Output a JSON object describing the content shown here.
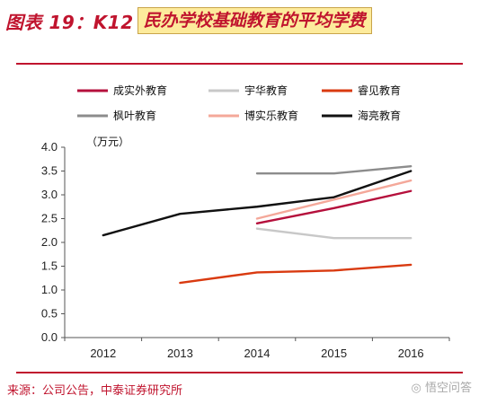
{
  "header": {
    "prefix": "图表 19：K12",
    "boxed": "民办学校基础教育的平均学费"
  },
  "footer": {
    "source": "来源：公司公告，中泰证券研究所",
    "watermark": "◎ 悟空问答"
  },
  "chart_data": {
    "type": "line",
    "unit": "（万元）",
    "x": [
      2012,
      2013,
      2014,
      2015,
      2016
    ],
    "ylim": [
      0,
      4
    ],
    "yticks": [
      "0.0",
      "0.5",
      "1.0",
      "1.5",
      "2.0",
      "2.5",
      "3.0",
      "3.5",
      "4.0"
    ],
    "grid": false,
    "legend_position": "top",
    "series": [
      {
        "name": "成实外教育",
        "color": "#b5103c",
        "values": [
          null,
          null,
          2.4,
          2.72,
          3.08
        ]
      },
      {
        "name": "宇华教育",
        "color": "#c8c8c8",
        "values": [
          null,
          null,
          2.29,
          2.09,
          2.09
        ]
      },
      {
        "name": "睿见教育",
        "color": "#d93a10",
        "values": [
          null,
          1.15,
          1.37,
          1.41,
          1.53
        ]
      },
      {
        "name": "枫叶教育",
        "color": "#8c8c8c",
        "values": [
          null,
          null,
          3.45,
          3.45,
          3.6
        ]
      },
      {
        "name": "博实乐教育",
        "color": "#f4a89a",
        "values": [
          null,
          null,
          2.5,
          2.9,
          3.3
        ]
      },
      {
        "name": "海亮教育",
        "color": "#111111",
        "values": [
          2.15,
          2.6,
          2.75,
          2.95,
          3.5
        ]
      }
    ]
  }
}
